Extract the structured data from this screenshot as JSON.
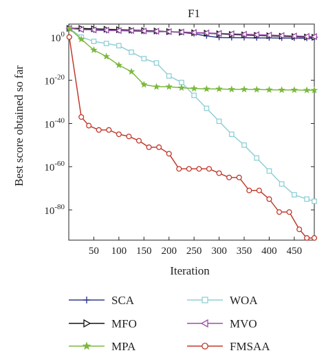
{
  "chart_data": {
    "type": "line",
    "title": "F1",
    "xlabel": "Iteration",
    "ylabel": "Best score obtained so far",
    "xlim": [
      0,
      490
    ],
    "ylim": [
      -94,
      6
    ],
    "y_scale": "log",
    "grid": false,
    "legend_position": "below-plot",
    "x_ticks": [
      50,
      100,
      150,
      200,
      250,
      300,
      350,
      400,
      450
    ],
    "y_ticks": [
      {
        "base": "10",
        "exp": "0",
        "value": 0
      },
      {
        "base": "10",
        "exp": "-20",
        "value": -20
      },
      {
        "base": "10",
        "exp": "-40",
        "value": -40
      },
      {
        "base": "10",
        "exp": "-60",
        "value": -60
      },
      {
        "base": "10",
        "exp": "-80",
        "value": -80
      }
    ],
    "series": [
      {
        "name": "SCA",
        "color": "#2e3a87",
        "marker": "plus",
        "x": [
          1,
          25,
          50,
          75,
          100,
          125,
          150,
          175,
          200,
          225,
          250,
          275,
          300,
          325,
          350,
          375,
          400,
          425,
          450,
          475,
          490
        ],
        "y": [
          4,
          3.7,
          3.2,
          3.0,
          3.0,
          2.8,
          2.6,
          2.5,
          2.5,
          2.2,
          1.5,
          0.5,
          -0.2,
          -0.3,
          -0.3,
          -0.4,
          -0.4,
          -0.5,
          -0.5,
          -0.6,
          -0.6
        ]
      },
      {
        "name": "WOA",
        "color": "#8fcfd6",
        "marker": "square",
        "x": [
          1,
          25,
          50,
          75,
          100,
          125,
          150,
          175,
          200,
          225,
          250,
          275,
          300,
          325,
          350,
          375,
          400,
          425,
          450,
          475,
          490
        ],
        "y": [
          4,
          0,
          -2,
          -3,
          -4,
          -7,
          -10,
          -12,
          -18,
          -21,
          -27,
          -33,
          -39,
          -45,
          -50,
          -56,
          -62,
          -68,
          -73,
          -75,
          -76
        ]
      },
      {
        "name": "MFO",
        "color": "#111111",
        "marker": "triangle-right",
        "x": [
          1,
          25,
          50,
          75,
          100,
          125,
          150,
          175,
          200,
          225,
          250,
          275,
          300,
          325,
          350,
          375,
          400,
          425,
          450,
          475,
          490
        ],
        "y": [
          4,
          4,
          3.8,
          3.6,
          3.4,
          3.2,
          3.0,
          2.8,
          2.5,
          2.2,
          2.0,
          1.8,
          1.5,
          1.2,
          1.0,
          0.8,
          0.6,
          0.4,
          0.2,
          0.0,
          -0.1
        ]
      },
      {
        "name": "MVO",
        "color": "#9a4fa8",
        "marker": "triangle-left",
        "x": [
          1,
          25,
          50,
          75,
          100,
          125,
          150,
          175,
          200,
          225,
          250,
          275,
          300,
          325,
          350,
          375,
          400,
          425,
          450,
          475,
          490
        ],
        "y": [
          4,
          3.5,
          3.3,
          3.2,
          3.0,
          3.0,
          2.8,
          2.7,
          2.5,
          2.3,
          2.1,
          1.9,
          1.7,
          1.5,
          1.3,
          1.1,
          0.9,
          0.7,
          0.5,
          0.3,
          0.2
        ]
      },
      {
        "name": "MPA",
        "color": "#7bb83e",
        "marker": "star",
        "x": [
          1,
          25,
          50,
          75,
          100,
          125,
          150,
          175,
          200,
          225,
          250,
          275,
          300,
          325,
          350,
          375,
          400,
          425,
          450,
          475,
          490
        ],
        "y": [
          4,
          -1,
          -6,
          -9,
          -13,
          -16,
          -22,
          -23,
          -23,
          -23.5,
          -23.8,
          -24,
          -24,
          -24.2,
          -24.2,
          -24.3,
          -24.4,
          -24.5,
          -24.5,
          -24.6,
          -24.6
        ]
      },
      {
        "name": "FMSAA",
        "color": "#c0392b",
        "marker": "circle",
        "x": [
          1,
          25,
          40,
          60,
          80,
          100,
          120,
          140,
          160,
          180,
          200,
          220,
          240,
          260,
          280,
          300,
          320,
          340,
          360,
          380,
          400,
          420,
          440,
          460,
          475,
          490
        ],
        "y": [
          0,
          -37,
          -41,
          -43,
          -43,
          -45,
          -46,
          -48,
          -51,
          -51,
          -54,
          -61,
          -61,
          -61,
          -61,
          -63,
          -65,
          -65,
          -71,
          -71,
          -75,
          -81,
          -81,
          -89,
          -93,
          -93
        ]
      }
    ]
  }
}
